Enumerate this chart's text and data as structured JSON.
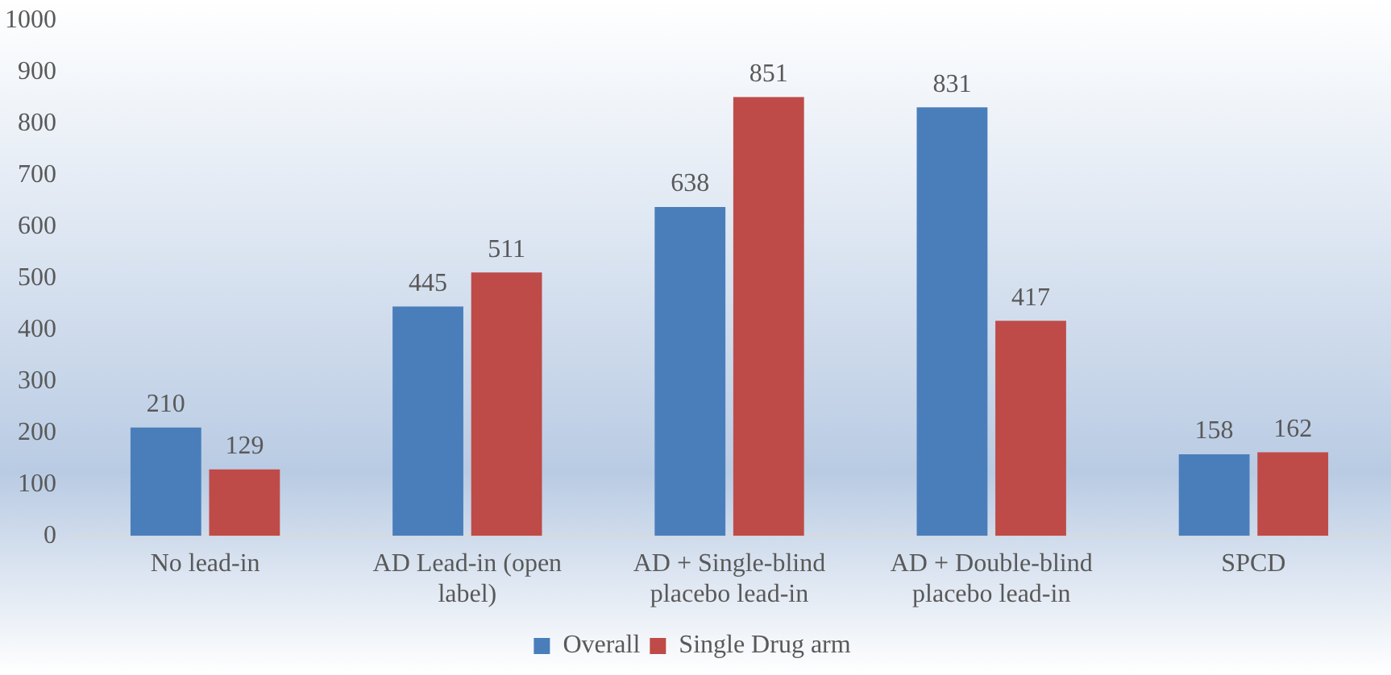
{
  "chart_data": {
    "type": "bar",
    "categories": [
      "No lead-in",
      "AD Lead-in (open label)",
      "AD + Single-blind placebo lead-in",
      "AD + Double-blind placebo lead-in",
      "SPCD"
    ],
    "series": [
      {
        "name": "Overall",
        "color": "#4a7ebb",
        "values": [
          210,
          445,
          638,
          831,
          158
        ]
      },
      {
        "name": "Single Drug arm",
        "color": "#be4b48",
        "values": [
          129,
          511,
          851,
          417,
          162
        ]
      }
    ],
    "ylim": [
      0,
      1000
    ],
    "yticks": [
      0,
      100,
      200,
      300,
      400,
      500,
      600,
      700,
      800,
      900,
      1000
    ],
    "grid": false,
    "legend": "bottom",
    "data_labels": true
  }
}
